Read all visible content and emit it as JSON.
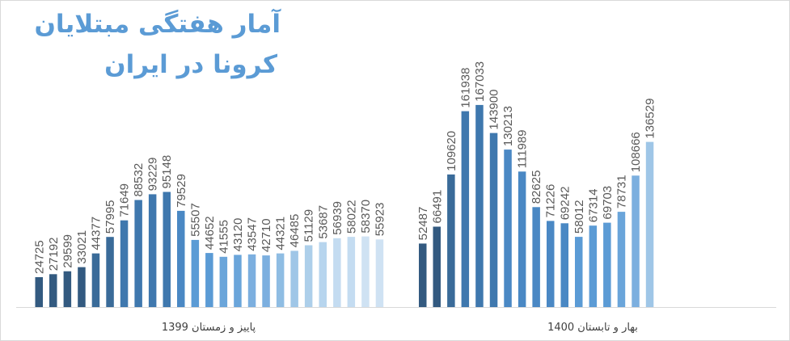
{
  "chart_data": {
    "type": "bar",
    "title": "آمار هفتگی مبتلایان کرونا در ایران",
    "title_lines": [
      "آمار هفتگی مبتلایان",
      "کرونا در ایران"
    ],
    "ylim": [
      0,
      175000
    ],
    "grid": false,
    "groups": [
      {
        "label": "پاییز و زمستان 1399",
        "values": [
          24725,
          27192,
          29599,
          33021,
          44377,
          57995,
          71649,
          88532,
          93229,
          95148,
          79529,
          55507,
          44652,
          41555,
          43120,
          43547,
          42710,
          44321,
          46485,
          51129,
          53687,
          56939,
          58022,
          58370,
          55923
        ],
        "colors": [
          "#335a80",
          "#335a80",
          "#335a80",
          "#335a80",
          "#3a6b99",
          "#3a6b99",
          "#3f78ae",
          "#3f78ae",
          "#3f78ae",
          "#3f78ae",
          "#4a88c4",
          "#5b9bd5",
          "#5b9bd5",
          "#6aa5da",
          "#6aa5da",
          "#7cafdf",
          "#7cafdf",
          "#8fbde3",
          "#9fc6e7",
          "#adcfea",
          "#b7d5ee",
          "#c4dcf1",
          "#c4dcf1",
          "#cfe2f3",
          "#cfe2f3"
        ]
      },
      {
        "label": "بهار و تابستان 1400",
        "values": [
          52487,
          66491,
          109620,
          161938,
          167033,
          143900,
          130213,
          111989,
          82625,
          71226,
          69242,
          58012,
          67314,
          69703,
          78731,
          108666,
          136529
        ],
        "colors": [
          "#335a80",
          "#335a80",
          "#3a6b99",
          "#3f78ae",
          "#3f78ae",
          "#3f78ae",
          "#4a88c4",
          "#4a88c4",
          "#4a88c4",
          "#4a88c4",
          "#4a88c4",
          "#5b9bd5",
          "#5b9bd5",
          "#5b9bd5",
          "#6aa5da",
          "#7cafdf",
          "#9fc6e7"
        ]
      }
    ]
  }
}
